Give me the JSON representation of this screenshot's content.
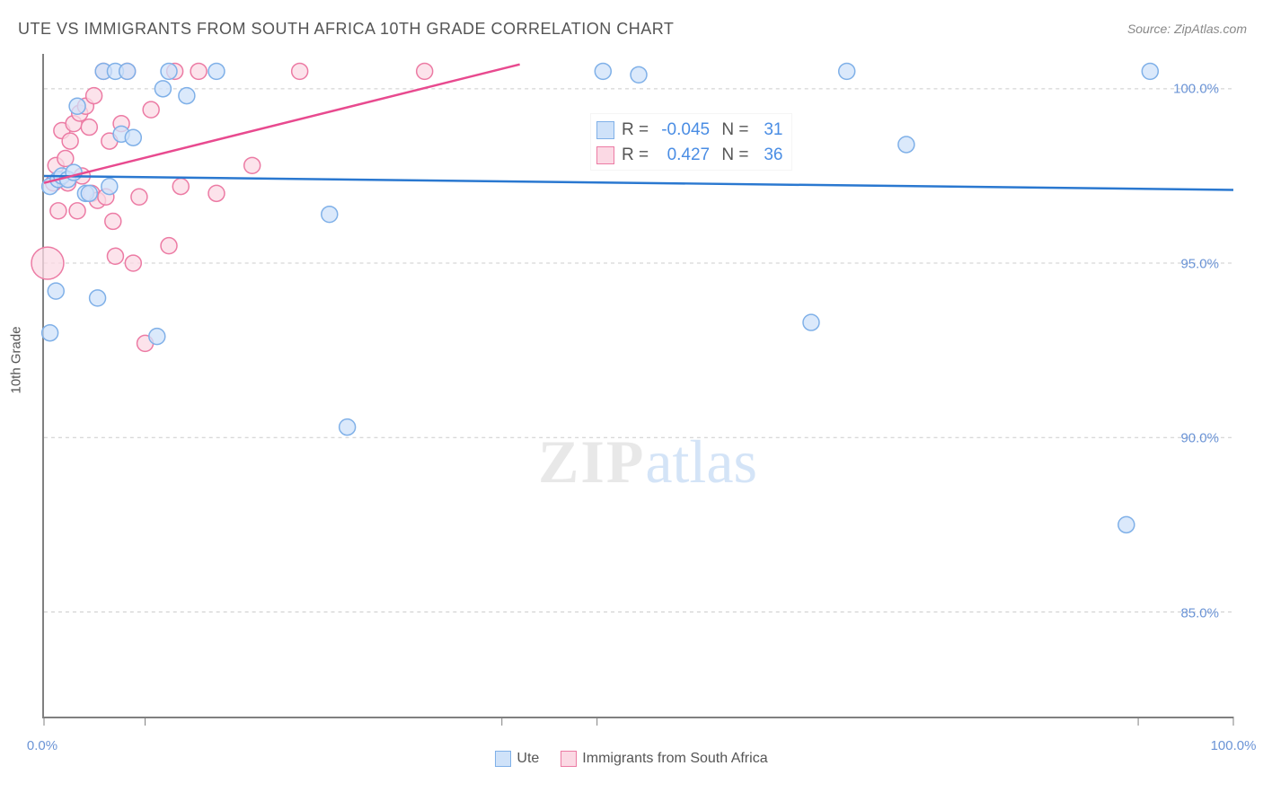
{
  "title": "UTE VS IMMIGRANTS FROM SOUTH AFRICA 10TH GRADE CORRELATION CHART",
  "source": "Source: ZipAtlas.com",
  "y_axis_label": "10th Grade",
  "watermark": {
    "part1": "ZIP",
    "part2": "atlas"
  },
  "chart": {
    "type": "scatter",
    "xlim": [
      0,
      100
    ],
    "ylim": [
      82,
      101
    ],
    "x_ticks": [
      0,
      8.5,
      38.5,
      46.5,
      92,
      100
    ],
    "x_tick_labels": {
      "0": "0.0%",
      "100": "100.0%"
    },
    "y_ticks": [
      85,
      90,
      95,
      100
    ],
    "y_tick_labels": {
      "85": "85.0%",
      "90": "90.0%",
      "95": "95.0%",
      "100": "100.0%"
    },
    "grid_color": "#cccccc",
    "background_color": "#ffffff",
    "point_radius": 9,
    "series": [
      {
        "name": "Ute",
        "color_fill": "#cfe2f9",
        "color_stroke": "#7fb0e8",
        "line_color": "#2a78d0",
        "line_width": 2.5,
        "R": "-0.045",
        "N": "31",
        "trend": {
          "x1": 0,
          "y1": 97.5,
          "x2": 100,
          "y2": 97.1
        },
        "points": [
          [
            0.5,
            93.0
          ],
          [
            0.5,
            97.2
          ],
          [
            1.0,
            94.2
          ],
          [
            1.2,
            97.4
          ],
          [
            1.5,
            97.5
          ],
          [
            2.0,
            97.4
          ],
          [
            2.5,
            97.6
          ],
          [
            2.8,
            99.5
          ],
          [
            3.5,
            97.0
          ],
          [
            3.8,
            97.0
          ],
          [
            4.5,
            94.0
          ],
          [
            5.0,
            100.5
          ],
          [
            5.5,
            97.2
          ],
          [
            6.0,
            100.5
          ],
          [
            6.5,
            98.7
          ],
          [
            7.0,
            100.5
          ],
          [
            7.5,
            98.6
          ],
          [
            9.5,
            92.9
          ],
          [
            10.0,
            100.0
          ],
          [
            10.5,
            100.5
          ],
          [
            12.0,
            99.8
          ],
          [
            14.5,
            100.5
          ],
          [
            24.0,
            96.4
          ],
          [
            25.5,
            90.3
          ],
          [
            47.0,
            100.5
          ],
          [
            50.0,
            100.4
          ],
          [
            64.5,
            93.3
          ],
          [
            67.5,
            100.5
          ],
          [
            72.5,
            98.4
          ],
          [
            91.0,
            87.5
          ],
          [
            93.0,
            100.5
          ]
        ]
      },
      {
        "name": "Immigrants from South Africa",
        "color_fill": "#fbd9e4",
        "color_stroke": "#ec7ba4",
        "line_color": "#e84a8f",
        "line_width": 2.5,
        "R": "0.427",
        "N": "36",
        "trend": {
          "x1": 0,
          "y1": 97.3,
          "x2": 40,
          "y2": 100.7
        },
        "points": [
          [
            0.3,
            95.0,
            18
          ],
          [
            0.8,
            97.3
          ],
          [
            1.0,
            97.8
          ],
          [
            1.2,
            96.5
          ],
          [
            1.5,
            98.8
          ],
          [
            1.8,
            98.0
          ],
          [
            2.0,
            97.3
          ],
          [
            2.2,
            98.5
          ],
          [
            2.5,
            99.0
          ],
          [
            2.8,
            96.5
          ],
          [
            3.0,
            99.3
          ],
          [
            3.2,
            97.5
          ],
          [
            3.5,
            99.5
          ],
          [
            3.8,
            98.9
          ],
          [
            4.0,
            97.0
          ],
          [
            4.2,
            99.8
          ],
          [
            4.5,
            96.8
          ],
          [
            5.0,
            100.5
          ],
          [
            5.2,
            96.9
          ],
          [
            5.5,
            98.5
          ],
          [
            5.8,
            96.2
          ],
          [
            6.0,
            95.2
          ],
          [
            6.5,
            99.0
          ],
          [
            7.5,
            95.0
          ],
          [
            7.0,
            100.5
          ],
          [
            8.0,
            96.9
          ],
          [
            8.5,
            92.7
          ],
          [
            9.0,
            99.4
          ],
          [
            10.5,
            95.5
          ],
          [
            11.0,
            100.5
          ],
          [
            11.5,
            97.2
          ],
          [
            13.0,
            100.5
          ],
          [
            14.5,
            97.0
          ],
          [
            17.5,
            97.8
          ],
          [
            21.5,
            100.5
          ],
          [
            32.0,
            100.5
          ]
        ]
      }
    ]
  },
  "legend": {
    "items": [
      {
        "label": "Ute",
        "fill": "#cfe2f9",
        "stroke": "#7fb0e8"
      },
      {
        "label": "Immigrants from South Africa",
        "fill": "#fbd9e4",
        "stroke": "#ec7ba4"
      }
    ]
  }
}
